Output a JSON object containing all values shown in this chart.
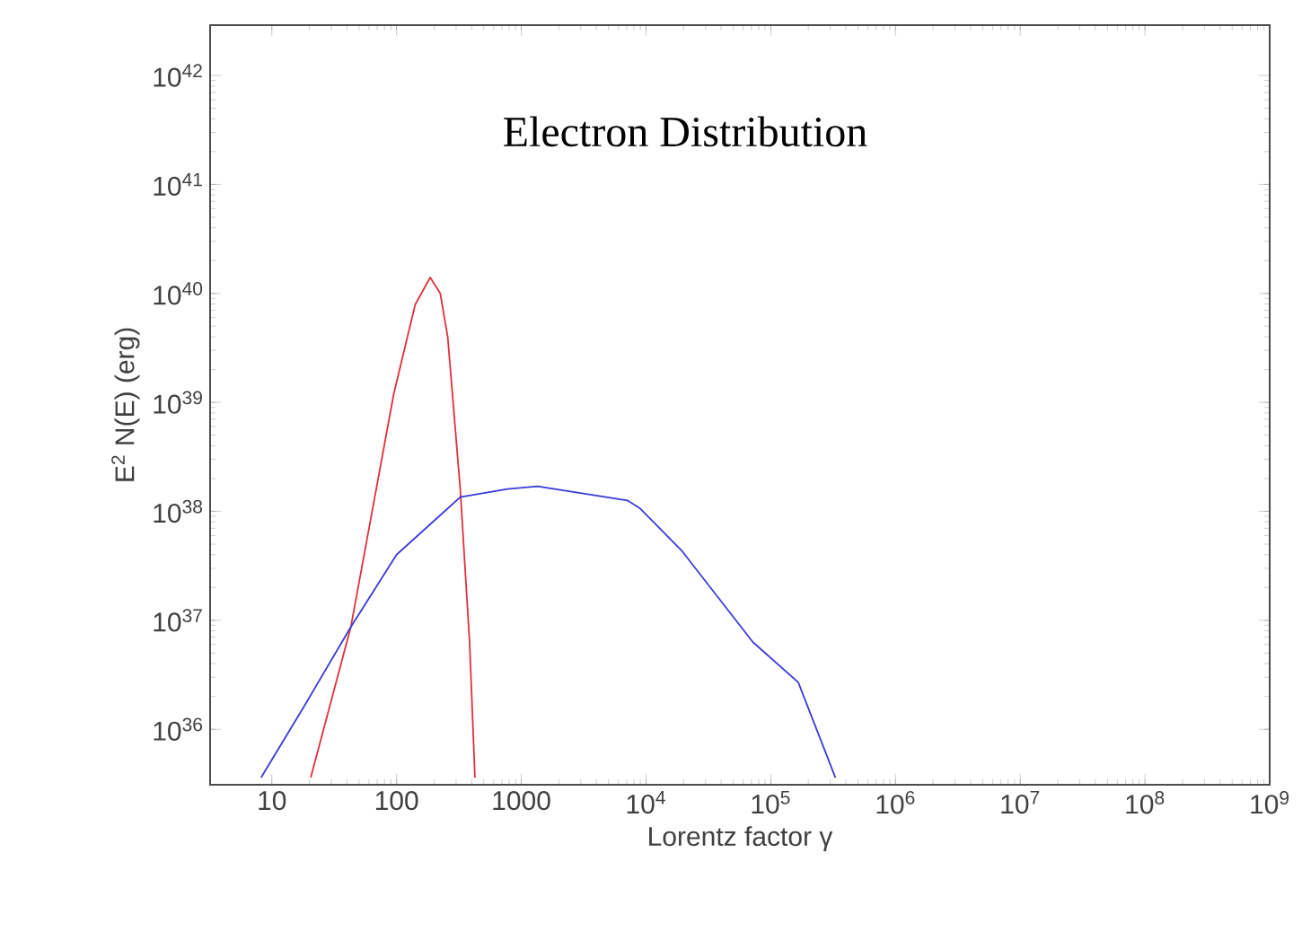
{
  "chart_data": {
    "type": "line",
    "xlabel": "Lorentz factor γ",
    "ylabel": "E$^{2}$ N(E)   (erg)",
    "annotations": [
      "Electron Distribution"
    ],
    "log": "xy",
    "grid": false,
    "marker": "none",
    "line_style": "solid",
    "xlim": [
      3.2,
      1000000000.0
    ],
    "ylim": [
      3.1e+35,
      2.9e+42
    ],
    "xticks": [
      10,
      100,
      1000,
      {
        "value": 10000.0,
        "label": "10$^{4}$"
      },
      {
        "value": 100000.0,
        "label": "10$^{5}$"
      },
      {
        "value": 1000000.0,
        "label": "10$^{6}$"
      },
      {
        "value": 10000000.0,
        "label": "10$^{7}$"
      },
      {
        "value": 100000000.0,
        "label": "10$^{8}$"
      },
      {
        "value": 1000000000.0,
        "label": "10$^{9}$"
      }
    ],
    "yticks": [
      {
        "value": 1e+36,
        "label": "10$^{36}$"
      },
      {
        "value": 1e+37,
        "label": "10$^{37}$"
      },
      {
        "value": 1e+38,
        "label": "10$^{38}$"
      },
      {
        "value": 1e+39,
        "label": "10$^{39}$"
      },
      {
        "value": 1e+40,
        "label": "10$^{40}$"
      },
      {
        "value": 1e+41,
        "label": "10$^{41}$"
      },
      {
        "value": 1e+42,
        "label": "10$^{42}$"
      }
    ],
    "series": [
      {
        "color": "#e0303a",
        "x": [
          20.5,
          43,
          95,
          141,
          186,
          224,
          257,
          324,
          385,
          425
        ],
        "values": [
          3.6e+35,
          8.7e+36,
          1.2e+39,
          7.9e+39,
          1.4e+40,
          1e+40,
          4e+39,
          1.6e+38,
          6.3e+36,
          3.6e+35
        ]
      },
      {
        "color": "#3a3ad8",
        "x": [
          8.2,
          18,
          43,
          100,
          324,
          776,
          1350,
          7080,
          8900,
          19500,
          72000,
          166000,
          330000
        ],
        "values": [
          3.6e+35,
          1.6e+36,
          8.7e+36,
          4e+37,
          1.35e+38,
          1.6e+38,
          1.7e+38,
          1.26e+38,
          1.07e+38,
          4.3e+37,
          6.3e+36,
          2.7e+36,
          3.6e+35
        ]
      }
    ]
  }
}
